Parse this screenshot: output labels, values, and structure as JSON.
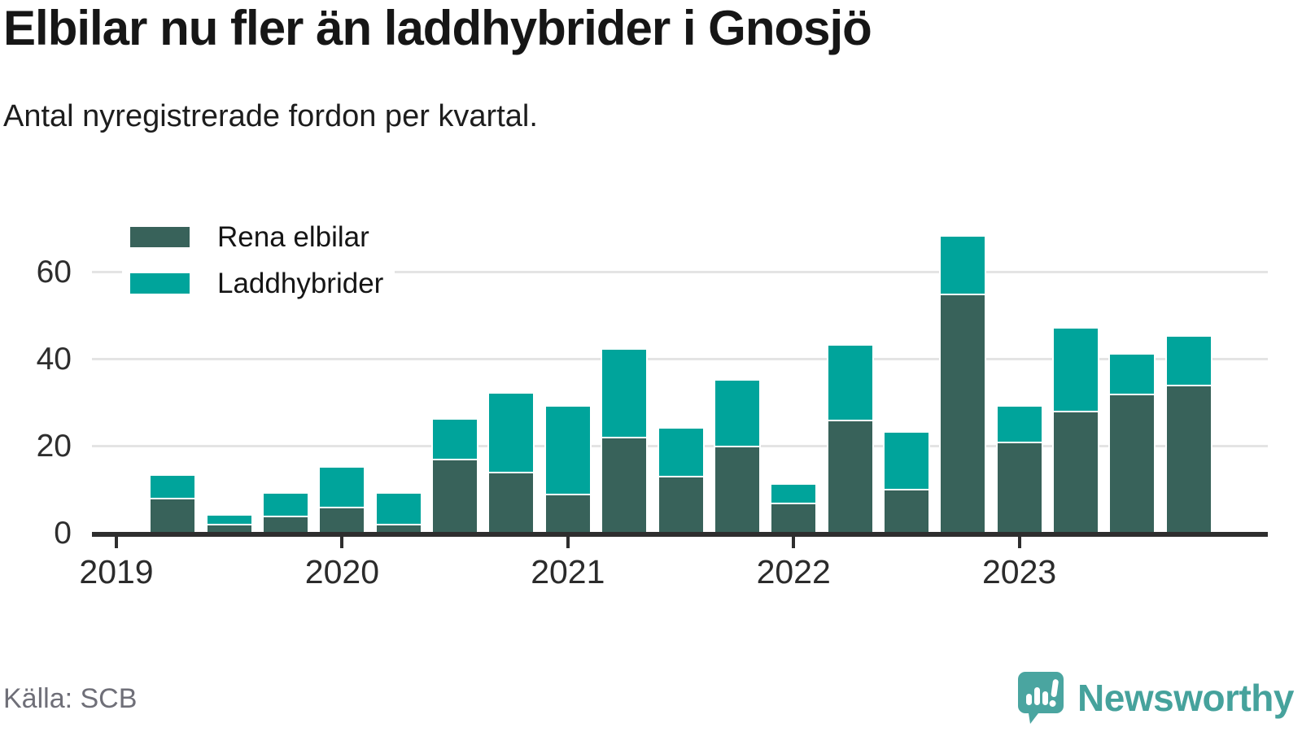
{
  "header": {
    "title": "Elbilar nu fler än laddhybrider i Gnosjö",
    "subtitle": "Antal nyregistrerade fordon per kvartal."
  },
  "chart_data": {
    "type": "bar",
    "stacked": true,
    "x": [
      "2019 Q1",
      "2019 Q2",
      "2019 Q3",
      "2019 Q4",
      "2020 Q1",
      "2020 Q2",
      "2020 Q3",
      "2020 Q4",
      "2021 Q1",
      "2021 Q2",
      "2021 Q3",
      "2021 Q4",
      "2022 Q1",
      "2022 Q2",
      "2022 Q3",
      "2022 Q4",
      "2023 Q1",
      "2023 Q2",
      "2023 Q3",
      "2023 Q4"
    ],
    "series": [
      {
        "name": "Rena elbilar",
        "color": "#38625a",
        "values": [
          0,
          8,
          2,
          4,
          6,
          2,
          17,
          14,
          9,
          22,
          13,
          20,
          7,
          26,
          10,
          55,
          21,
          28,
          32,
          34
        ]
      },
      {
        "name": "Laddhybrider",
        "color": "#00a49b",
        "values": [
          0,
          5,
          2,
          5,
          9,
          7,
          9,
          18,
          20,
          20,
          11,
          15,
          4,
          17,
          13,
          13,
          8,
          19,
          9,
          11
        ]
      }
    ],
    "totals": [
      0,
      13,
      4,
      9,
      15,
      9,
      26,
      32,
      29,
      42,
      24,
      35,
      11,
      43,
      23,
      68,
      29,
      47,
      41,
      45
    ],
    "ylim": [
      0,
      72
    ],
    "yticks": [
      0,
      20,
      40,
      60
    ],
    "year_labels": [
      "2019",
      "2020",
      "2021",
      "2022",
      "2023"
    ],
    "grid": "horizontal",
    "legend_position": "top-left"
  },
  "footer": {
    "source": "Källa: SCB",
    "brand": "Newsworthy",
    "brand_color": "#46a29c"
  }
}
